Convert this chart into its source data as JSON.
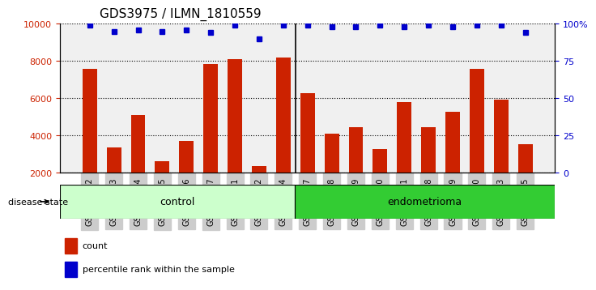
{
  "title": "GDS3975 / ILMN_1810559",
  "samples": [
    "GSM572752",
    "GSM572753",
    "GSM572754",
    "GSM572755",
    "GSM572756",
    "GSM572757",
    "GSM572761",
    "GSM572762",
    "GSM572764",
    "GSM572747",
    "GSM572748",
    "GSM572749",
    "GSM572750",
    "GSM572751",
    "GSM572758",
    "GSM572759",
    "GSM572760",
    "GSM572763",
    "GSM572765"
  ],
  "counts": [
    7600,
    3350,
    5100,
    2650,
    3700,
    7850,
    8100,
    2350,
    8200,
    6300,
    4100,
    4450,
    3300,
    5800,
    4450,
    5300,
    7600,
    5950,
    3550
  ],
  "percentiles": [
    99,
    95,
    96,
    95,
    96,
    94,
    99,
    90,
    99,
    99,
    98,
    98,
    99,
    98,
    99,
    98,
    99,
    99,
    94
  ],
  "control_count": 9,
  "endometrioma_count": 10,
  "bar_color": "#cc2200",
  "dot_color": "#0000cc",
  "ylim_left": [
    2000,
    10000
  ],
  "ylim_right": [
    0,
    100
  ],
  "yticks_left": [
    2000,
    4000,
    6000,
    8000,
    10000
  ],
  "yticks_right": [
    0,
    25,
    50,
    75,
    100
  ],
  "control_label": "control",
  "endo_label": "endometrioma",
  "disease_state_label": "disease state",
  "legend_count_label": "count",
  "legend_pct_label": "percentile rank within the sample",
  "control_color": "#ccffcc",
  "endo_color": "#33cc33",
  "tick_bg_color": "#cccccc",
  "background_color": "#ffffff",
  "plot_bg_color": "#f0f0f0"
}
